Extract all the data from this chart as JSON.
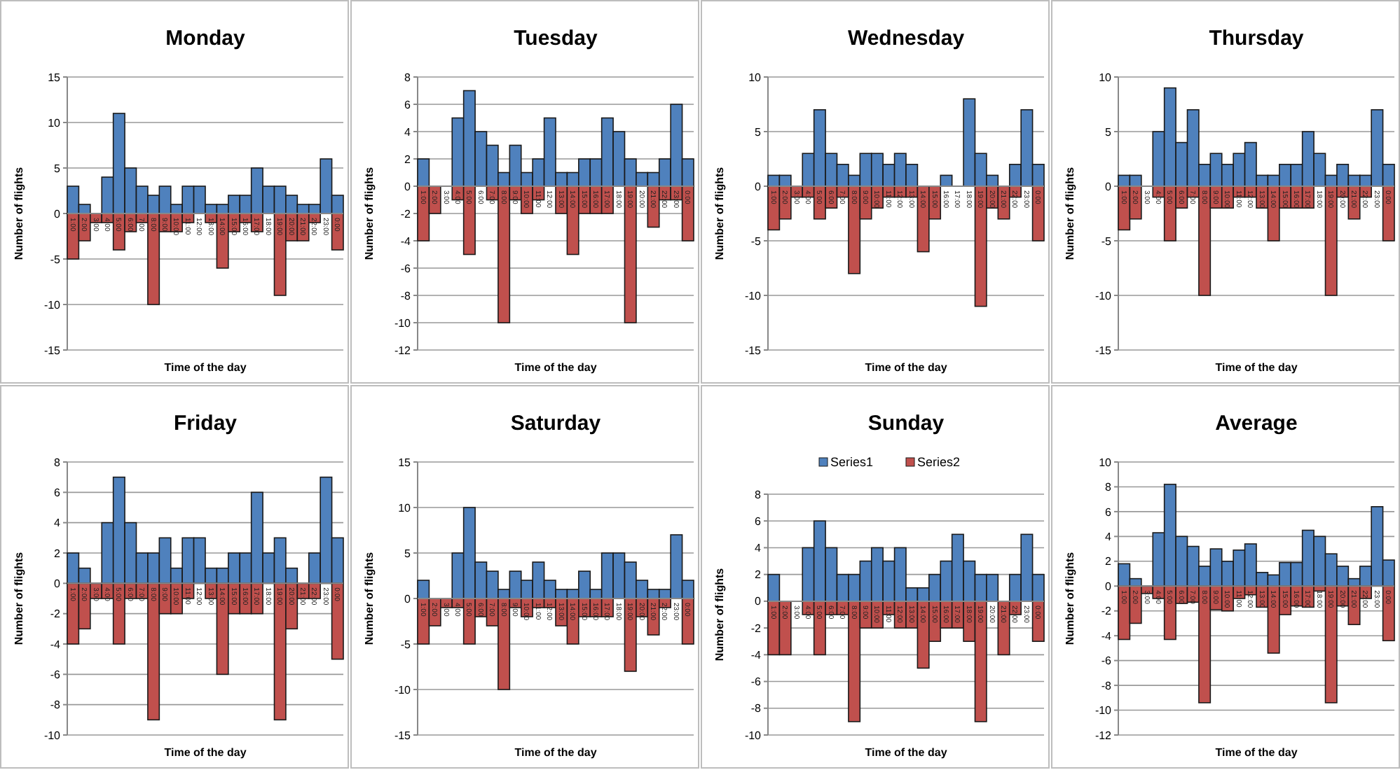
{
  "chart_data": [
    {
      "type": "bar",
      "title": "Monday",
      "xlabel": "Time of the day",
      "ylabel": "Number of flights",
      "categories": [
        "1:00",
        "2:00",
        "3:00",
        "4:00",
        "5:00",
        "6:00",
        "7:00",
        "8:00",
        "9:00",
        "10:00",
        "11:00",
        "12:00",
        "13:00",
        "14:00",
        "15:00",
        "16:00",
        "17:00",
        "18:00",
        "19:00",
        "20:00",
        "21:00",
        "22:00",
        "23:00",
        "0:00"
      ],
      "stacked": true,
      "ylim": [
        -15,
        15
      ],
      "yticks": [
        -15,
        -10,
        -5,
        0,
        5,
        10,
        15
      ],
      "grid": "y",
      "legend": false,
      "series": [
        {
          "color": "#4f81bd",
          "values": [
            3,
            1,
            0,
            4,
            11,
            5,
            3,
            2,
            3,
            1,
            3,
            3,
            1,
            1,
            2,
            2,
            5,
            3,
            3,
            2,
            1,
            1,
            6,
            2
          ]
        },
        {
          "color": "#c0504d",
          "values": [
            -5,
            -3,
            -1,
            -1,
            -4,
            -2,
            -1,
            -10,
            -2,
            -2,
            -1,
            0,
            -1,
            -6,
            -2,
            -1,
            -2,
            0,
            -9,
            -3,
            -3,
            -1,
            0,
            -4
          ]
        }
      ]
    },
    {
      "type": "bar",
      "title": "Tuesday",
      "xlabel": "Time of the day",
      "ylabel": "Number of flights",
      "categories": [
        "1:00",
        "2:00",
        "3:00",
        "4:00",
        "5:00",
        "6:00",
        "7:00",
        "8:00",
        "9:00",
        "10:00",
        "11:00",
        "12:00",
        "13:00",
        "14:00",
        "15:00",
        "16:00",
        "17:00",
        "18:00",
        "19:00",
        "20:00",
        "21:00",
        "22:00",
        "23:00",
        "0:00"
      ],
      "stacked": true,
      "ylim": [
        -12,
        8
      ],
      "yticks": [
        -12,
        -10,
        -8,
        -6,
        -4,
        -2,
        0,
        2,
        4,
        6,
        8
      ],
      "grid": "y",
      "legend": false,
      "series": [
        {
          "color": "#4f81bd",
          "values": [
            2,
            0,
            0,
            5,
            7,
            4,
            3,
            1,
            3,
            1,
            2,
            5,
            1,
            1,
            2,
            2,
            5,
            4,
            2,
            1,
            1,
            2,
            6,
            2
          ]
        },
        {
          "color": "#c0504d",
          "values": [
            -4,
            -2,
            0,
            -1,
            -5,
            0,
            -1,
            -10,
            -1,
            -2,
            -1,
            0,
            -2,
            -5,
            -2,
            -2,
            -2,
            0,
            -10,
            0,
            -3,
            -1,
            -1,
            -4
          ]
        }
      ]
    },
    {
      "type": "bar",
      "title": "Wednesday",
      "xlabel": "Time of the day",
      "ylabel": "Number of flights",
      "categories": [
        "1:00",
        "2:00",
        "3:00",
        "4:00",
        "5:00",
        "6:00",
        "7:00",
        "8:00",
        "9:00",
        "10:00",
        "11:00",
        "12:00",
        "13:00",
        "14:00",
        "15:00",
        "16:00",
        "17:00",
        "18:00",
        "19:00",
        "20:00",
        "21:00",
        "22:00",
        "23:00",
        "0:00"
      ],
      "stacked": true,
      "ylim": [
        -15,
        10
      ],
      "yticks": [
        -15,
        -10,
        -5,
        0,
        5,
        10
      ],
      "grid": "y",
      "legend": false,
      "series": [
        {
          "color": "#4f81bd",
          "values": [
            1,
            1,
            0,
            3,
            7,
            3,
            2,
            1,
            3,
            3,
            2,
            3,
            2,
            0,
            0,
            1,
            0,
            8,
            3,
            1,
            0,
            2,
            7,
            2
          ]
        },
        {
          "color": "#c0504d",
          "values": [
            -4,
            -3,
            -1,
            -1,
            -3,
            -2,
            -1,
            -8,
            -3,
            -2,
            -1,
            -1,
            -1,
            -6,
            -3,
            0,
            0,
            0,
            -11,
            -2,
            -3,
            -1,
            0,
            -5
          ]
        }
      ]
    },
    {
      "type": "bar",
      "title": "Thursday",
      "xlabel": "Time of the day",
      "ylabel": "Number of flights",
      "categories": [
        "1:00",
        "2:00",
        "3:00",
        "4:00",
        "5:00",
        "6:00",
        "7:00",
        "8:00",
        "9:00",
        "10:00",
        "11:00",
        "12:00",
        "13:00",
        "14:00",
        "15:00",
        "16:00",
        "17:00",
        "18:00",
        "19:00",
        "20:00",
        "21:00",
        "22:00",
        "23:00",
        "0:00"
      ],
      "stacked": true,
      "ylim": [
        -15,
        10
      ],
      "yticks": [
        -15,
        -10,
        -5,
        0,
        5,
        10
      ],
      "grid": "y",
      "legend": false,
      "series": [
        {
          "color": "#4f81bd",
          "values": [
            1,
            1,
            0,
            5,
            9,
            4,
            7,
            2,
            3,
            2,
            3,
            4,
            1,
            1,
            2,
            2,
            5,
            3,
            1,
            2,
            1,
            1,
            7,
            2
          ]
        },
        {
          "color": "#c0504d",
          "values": [
            -4,
            -3,
            0,
            -1,
            -5,
            -2,
            -1,
            -10,
            -2,
            -2,
            -1,
            -1,
            -2,
            -5,
            -2,
            -2,
            -2,
            0,
            -10,
            -1,
            -3,
            -1,
            0,
            -5
          ]
        }
      ]
    },
    {
      "type": "bar",
      "title": "Friday",
      "xlabel": "Time of the day",
      "ylabel": "Number of flights",
      "categories": [
        "1:00",
        "2:00",
        "3:00",
        "4:00",
        "5:00",
        "6:00",
        "7:00",
        "8:00",
        "9:00",
        "10:00",
        "11:00",
        "12:00",
        "13:00",
        "14:00",
        "15:00",
        "16:00",
        "17:00",
        "18:00",
        "19:00",
        "20:00",
        "21:00",
        "22:00",
        "23:00",
        "0:00"
      ],
      "stacked": true,
      "ylim": [
        -10,
        8
      ],
      "yticks": [
        -10,
        -8,
        -6,
        -4,
        -2,
        0,
        2,
        4,
        6,
        8
      ],
      "grid": "y",
      "legend": false,
      "series": [
        {
          "color": "#4f81bd",
          "values": [
            2,
            1,
            0,
            4,
            7,
            4,
            2,
            2,
            3,
            1,
            3,
            3,
            1,
            1,
            2,
            2,
            6,
            2,
            3,
            1,
            0,
            2,
            7,
            3
          ]
        },
        {
          "color": "#c0504d",
          "values": [
            -4,
            -3,
            -1,
            -1,
            -4,
            -1,
            -1,
            -9,
            -2,
            -2,
            -1,
            0,
            -1,
            -6,
            -2,
            -2,
            -2,
            0,
            -9,
            -3,
            -1,
            -1,
            0,
            -5
          ]
        }
      ]
    },
    {
      "type": "bar",
      "title": "Saturday",
      "xlabel": "Time of the day",
      "ylabel": "Number of flights",
      "categories": [
        "1:00",
        "2:00",
        "3:00",
        "4:00",
        "5:00",
        "6:00",
        "7:00",
        "8:00",
        "9:00",
        "10:00",
        "11:00",
        "12:00",
        "13:00",
        "14:00",
        "15:00",
        "16:00",
        "17:00",
        "18:00",
        "19:00",
        "20:00",
        "21:00",
        "22:00",
        "23:00",
        "0:00"
      ],
      "stacked": true,
      "ylim": [
        -15,
        15
      ],
      "yticks": [
        -15,
        -10,
        -5,
        0,
        5,
        10,
        15
      ],
      "grid": "y",
      "legend": false,
      "series": [
        {
          "color": "#4f81bd",
          "values": [
            2,
            0,
            0,
            5,
            10,
            4,
            3,
            1,
            3,
            2,
            4,
            2,
            1,
            1,
            3,
            1,
            5,
            5,
            4,
            2,
            1,
            1,
            7,
            2
          ]
        },
        {
          "color": "#c0504d",
          "values": [
            -5,
            -3,
            -1,
            -1,
            -5,
            -2,
            -3,
            -10,
            -1,
            -2,
            -1,
            -1,
            -3,
            -5,
            -2,
            -2,
            -2,
            0,
            -8,
            -2,
            -4,
            -1,
            0,
            -5
          ]
        }
      ]
    },
    {
      "type": "bar",
      "title": "Sunday",
      "xlabel": "Time of the day",
      "ylabel": "Number of flights",
      "categories": [
        "1:00",
        "2:00",
        "3:00",
        "4:00",
        "5:00",
        "6:00",
        "7:00",
        "8:00",
        "9:00",
        "10:00",
        "11:00",
        "12:00",
        "13:00",
        "14:00",
        "15:00",
        "16:00",
        "17:00",
        "18:00",
        "19:00",
        "20:00",
        "21:00",
        "22:00",
        "23:00",
        "0:00"
      ],
      "stacked": true,
      "ylim": [
        -10,
        8
      ],
      "yticks": [
        -10,
        -8,
        -6,
        -4,
        -2,
        0,
        2,
        4,
        6,
        8
      ],
      "grid": "y",
      "legend": "top",
      "series": [
        {
          "name": "Series1",
          "color": "#4f81bd",
          "values": [
            2,
            0,
            0,
            4,
            6,
            4,
            2,
            2,
            3,
            4,
            3,
            4,
            1,
            1,
            2,
            3,
            5,
            3,
            2,
            2,
            0,
            2,
            5,
            2
          ]
        },
        {
          "name": "Series2",
          "color": "#c0504d",
          "values": [
            -4,
            -4,
            0,
            -1,
            -4,
            -1,
            -1,
            -9,
            -2,
            -2,
            -1,
            -2,
            -2,
            -5,
            -3,
            -2,
            -2,
            -3,
            -9,
            0,
            -4,
            -1,
            0,
            -3
          ]
        }
      ]
    },
    {
      "type": "bar",
      "title": "Average",
      "xlabel": "Time of the day",
      "ylabel": "Number of flights",
      "categories": [
        "1:00",
        "2:00",
        "3:00",
        "4:00",
        "5:00",
        "6:00",
        "7:00",
        "8:00",
        "9:00",
        "10:00",
        "11:00",
        "12:00",
        "13:00",
        "14:00",
        "15:00",
        "16:00",
        "17:00",
        "18:00",
        "19:00",
        "20:00",
        "21:00",
        "22:00",
        "23:00",
        "0:00"
      ],
      "stacked": true,
      "ylim": [
        -12,
        10
      ],
      "yticks": [
        -12,
        -10,
        -8,
        -6,
        -4,
        -2,
        0,
        2,
        4,
        6,
        8,
        10
      ],
      "grid": "y",
      "legend": false,
      "series": [
        {
          "color": "#4f81bd",
          "values": [
            1.8,
            0.6,
            0,
            4.3,
            8.2,
            4,
            3.2,
            1.6,
            3,
            2,
            2.9,
            3.4,
            1.1,
            0.9,
            1.9,
            1.9,
            4.5,
            4,
            2.6,
            1.6,
            0.6,
            1.6,
            6.4,
            2.1
          ]
        },
        {
          "color": "#c0504d",
          "values": [
            -4.3,
            -3,
            -0.6,
            -1,
            -4.3,
            -1.4,
            -1.3,
            -9.4,
            -1.9,
            -2,
            -1,
            -0.7,
            -1.7,
            -5.4,
            -2.3,
            -1.6,
            -1.7,
            -0.4,
            -9.4,
            -1.6,
            -3.1,
            -1,
            0,
            -4.4
          ]
        }
      ]
    }
  ]
}
